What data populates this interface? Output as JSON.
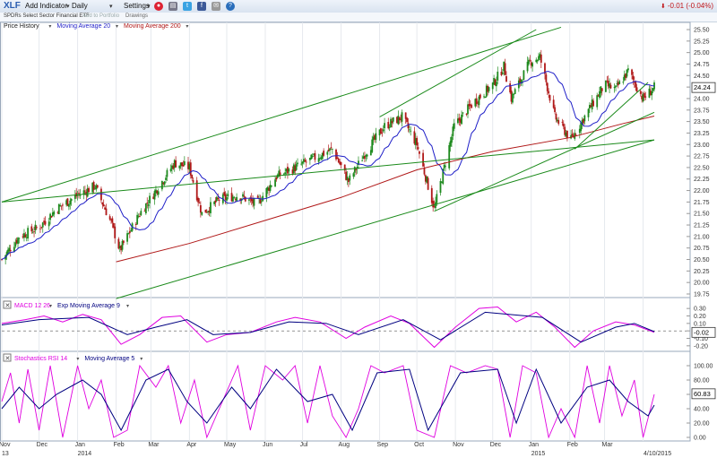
{
  "toolbar": {
    "symbol": "XLF",
    "add_indicator": "Add Indicator",
    "period": "Daily",
    "settings": "Settings",
    "price_change": "-0.01 (-0.04%)",
    "icons": [
      "flag-icon",
      "print-icon",
      "twitter-icon",
      "facebook-icon",
      "email-icon",
      "help-icon"
    ]
  },
  "subbar": {
    "name": "SPDRs Select Sector Financial ETF",
    "add_portfolio": "Add to Portfolio",
    "drawings": "Drawings"
  },
  "colors": {
    "up_candle": "#1e8a1e",
    "down_candle": "#b01818",
    "ma20": "#1f1fc8",
    "ma200": "#b01818",
    "trendline": "#1a8a1a",
    "macd": "#e000e0",
    "signal": "#000080"
  },
  "chart_data": [
    {
      "type": "candlestick",
      "legend": [
        "Price History",
        "Moving Average 20",
        "Moving Average 200"
      ],
      "y_range": [
        19.75,
        25.5
      ],
      "y_ticks": [
        "25.50",
        "25.25",
        "25.00",
        "24.75",
        "24.50",
        "24.25",
        "24.00",
        "23.75",
        "23.50",
        "23.25",
        "23.00",
        "22.75",
        "22.50",
        "22.25",
        "22.00",
        "21.75",
        "21.50",
        "21.25",
        "21.00",
        "20.75",
        "20.50",
        "20.25",
        "20.00",
        "19.75"
      ],
      "last_price": "24.24",
      "x_range": [
        "2013-11-01",
        "2015-04-10"
      ],
      "x_labels": [
        "Nov",
        "Dec",
        "Jan",
        "Feb",
        "Mar",
        "Apr",
        "May",
        "Jun",
        "Jul",
        "Aug",
        "Sep",
        "Oct",
        "Nov",
        "Dec",
        "Jan",
        "Feb",
        "Mar"
      ],
      "year_labels": [
        "13",
        "2014",
        "2015"
      ],
      "last_date_label": "4/10/2015",
      "price_path": [
        [
          "2013-11-01",
          20.5
        ],
        [
          "2013-11-15",
          21.0
        ],
        [
          "2013-12-01",
          21.2
        ],
        [
          "2013-12-15",
          21.6
        ],
        [
          "2014-01-01",
          21.9
        ],
        [
          "2014-01-15",
          22.1
        ],
        [
          "2014-01-28",
          21.3
        ],
        [
          "2014-02-04",
          20.7
        ],
        [
          "2014-02-20",
          21.5
        ],
        [
          "2014-03-05",
          22.0
        ],
        [
          "2014-03-20",
          22.6
        ],
        [
          "2014-04-01",
          22.5
        ],
        [
          "2014-04-11",
          21.5
        ],
        [
          "2014-04-25",
          21.8
        ],
        [
          "2014-05-10",
          21.9
        ],
        [
          "2014-05-25",
          21.7
        ],
        [
          "2014-06-10",
          22.3
        ],
        [
          "2014-06-25",
          22.5
        ],
        [
          "2014-07-10",
          22.7
        ],
        [
          "2014-07-25",
          22.9
        ],
        [
          "2014-08-07",
          22.2
        ],
        [
          "2014-08-20",
          22.8
        ],
        [
          "2014-09-05",
          23.4
        ],
        [
          "2014-09-19",
          23.6
        ],
        [
          "2014-10-01",
          23.0
        ],
        [
          "2014-10-15",
          21.6
        ],
        [
          "2014-10-31",
          23.4
        ],
        [
          "2014-11-15",
          23.9
        ],
        [
          "2014-12-01",
          24.3
        ],
        [
          "2014-12-10",
          24.7
        ],
        [
          "2014-12-16",
          24.0
        ],
        [
          "2014-12-31",
          24.8
        ],
        [
          "2015-01-08",
          24.9
        ],
        [
          "2015-01-20",
          23.6
        ],
        [
          "2015-02-02",
          23.1
        ],
        [
          "2015-02-15",
          23.7
        ],
        [
          "2015-03-01",
          24.3
        ],
        [
          "2015-03-10",
          24.2
        ],
        [
          "2015-03-20",
          24.6
        ],
        [
          "2015-04-01",
          24.0
        ],
        [
          "2015-04-10",
          24.24
        ]
      ],
      "ma200_path": [
        [
          "2014-02-01",
          20.45
        ],
        [
          "2014-04-01",
          20.85
        ],
        [
          "2014-06-01",
          21.35
        ],
        [
          "2014-08-01",
          21.85
        ],
        [
          "2014-10-01",
          22.45
        ],
        [
          "2014-12-01",
          22.85
        ],
        [
          "2015-02-01",
          23.15
        ],
        [
          "2015-03-15",
          23.45
        ],
        [
          "2015-04-10",
          23.62
        ]
      ],
      "trendlines": [
        {
          "from": [
            "2013-11-01",
            21.75
          ],
          "to": [
            "2015-04-10",
            23.1
          ]
        },
        {
          "from": [
            "2013-11-01",
            21.75
          ],
          "to": [
            "2015-01-25",
            25.55
          ]
        },
        {
          "from": [
            "2014-02-01",
            19.65
          ],
          "to": [
            "2015-04-10",
            23.1
          ]
        },
        {
          "from": [
            "2014-09-01",
            23.6
          ],
          "to": [
            "2015-01-05",
            25.5
          ]
        },
        {
          "from": [
            "2014-10-15",
            21.55
          ],
          "to": [
            "2015-04-10",
            23.7
          ]
        },
        {
          "from": [
            "2015-02-05",
            22.9
          ],
          "to": [
            "2015-04-05",
            24.35
          ]
        }
      ]
    },
    {
      "type": "line",
      "legend": [
        "MACD 12 26",
        "Exp Moving Average 9"
      ],
      "y_range": [
        -0.25,
        0.35
      ],
      "y_ticks": [
        "0.30",
        "0.20",
        "0.10",
        "0.00",
        "-0.10",
        "-0.20"
      ],
      "last_value": "-0.02",
      "macd_path": [
        [
          "2013-11-01",
          0.1
        ],
        [
          "2013-11-20",
          0.15
        ],
        [
          "2013-12-05",
          0.2
        ],
        [
          "2013-12-20",
          0.12
        ],
        [
          "2014-01-05",
          0.22
        ],
        [
          "2014-01-20",
          0.15
        ],
        [
          "2014-02-05",
          -0.18
        ],
        [
          "2014-02-20",
          -0.05
        ],
        [
          "2014-03-10",
          0.18
        ],
        [
          "2014-03-25",
          0.2
        ],
        [
          "2014-04-15",
          -0.15
        ],
        [
          "2014-05-01",
          -0.05
        ],
        [
          "2014-05-20",
          -0.02
        ],
        [
          "2014-06-10",
          0.12
        ],
        [
          "2014-06-25",
          0.18
        ],
        [
          "2014-07-15",
          0.12
        ],
        [
          "2014-08-05",
          -0.1
        ],
        [
          "2014-08-20",
          0.05
        ],
        [
          "2014-09-10",
          0.2
        ],
        [
          "2014-09-25",
          0.1
        ],
        [
          "2014-10-15",
          -0.22
        ],
        [
          "2014-11-01",
          0.05
        ],
        [
          "2014-11-20",
          0.3
        ],
        [
          "2014-12-05",
          0.32
        ],
        [
          "2014-12-20",
          0.12
        ],
        [
          "2015-01-05",
          0.25
        ],
        [
          "2015-01-20",
          0.05
        ],
        [
          "2015-02-05",
          -0.22
        ],
        [
          "2015-02-20",
          0.0
        ],
        [
          "2015-03-10",
          0.12
        ],
        [
          "2015-03-25",
          0.08
        ],
        [
          "2015-04-10",
          -0.02
        ]
      ],
      "signal_path": [
        [
          "2013-11-01",
          0.08
        ],
        [
          "2013-12-01",
          0.15
        ],
        [
          "2014-01-10",
          0.18
        ],
        [
          "2014-02-10",
          -0.05
        ],
        [
          "2014-03-05",
          0.05
        ],
        [
          "2014-03-30",
          0.15
        ],
        [
          "2014-04-20",
          -0.05
        ],
        [
          "2014-05-20",
          -0.02
        ],
        [
          "2014-06-20",
          0.12
        ],
        [
          "2014-07-20",
          0.1
        ],
        [
          "2014-08-15",
          -0.05
        ],
        [
          "2014-09-20",
          0.15
        ],
        [
          "2014-10-20",
          -0.12
        ],
        [
          "2014-11-25",
          0.25
        ],
        [
          "2014-12-15",
          0.22
        ],
        [
          "2015-01-10",
          0.18
        ],
        [
          "2015-02-10",
          -0.15
        ],
        [
          "2015-03-10",
          0.05
        ],
        [
          "2015-03-25",
          0.1
        ],
        [
          "2015-04-10",
          -0.01
        ]
      ]
    },
    {
      "type": "line",
      "legend": [
        "Stochastics RSI 14",
        "Moving Average 5"
      ],
      "y_range": [
        0,
        110
      ],
      "y_ticks": [
        "100.00",
        "80.00",
        "60.00",
        "40.00",
        "20.00",
        "0.00"
      ],
      "last_value": "60.83",
      "rsi_path": [
        [
          "2013-11-01",
          50
        ],
        [
          "2013-11-08",
          90
        ],
        [
          "2013-11-15",
          20
        ],
        [
          "2013-11-22",
          95
        ],
        [
          "2013-12-01",
          10
        ],
        [
          "2013-12-10",
          100
        ],
        [
          "2013-12-20",
          0
        ],
        [
          "2014-01-01",
          100
        ],
        [
          "2014-01-10",
          40
        ],
        [
          "2014-01-20",
          80
        ],
        [
          "2014-01-30",
          0
        ],
        [
          "2014-02-10",
          10
        ],
        [
          "2014-02-20",
          100
        ],
        [
          "2014-03-05",
          70
        ],
        [
          "2014-03-15",
          100
        ],
        [
          "2014-03-25",
          20
        ],
        [
          "2014-04-05",
          80
        ],
        [
          "2014-04-15",
          0
        ],
        [
          "2014-04-30",
          60
        ],
        [
          "2014-05-10",
          100
        ],
        [
          "2014-05-20",
          10
        ],
        [
          "2014-06-01",
          100
        ],
        [
          "2014-06-15",
          80
        ],
        [
          "2014-06-25",
          100
        ],
        [
          "2014-07-05",
          20
        ],
        [
          "2014-07-15",
          100
        ],
        [
          "2014-07-25",
          30
        ],
        [
          "2014-08-05",
          0
        ],
        [
          "2014-08-15",
          40
        ],
        [
          "2014-08-25",
          100
        ],
        [
          "2014-09-05",
          90
        ],
        [
          "2014-09-20",
          100
        ],
        [
          "2014-10-01",
          10
        ],
        [
          "2014-10-15",
          0
        ],
        [
          "2014-10-28",
          100
        ],
        [
          "2014-11-10",
          90
        ],
        [
          "2014-11-25",
          100
        ],
        [
          "2014-12-05",
          95
        ],
        [
          "2014-12-15",
          0
        ],
        [
          "2014-12-25",
          100
        ],
        [
          "2015-01-05",
          90
        ],
        [
          "2015-01-15",
          0
        ],
        [
          "2015-01-25",
          40
        ],
        [
          "2015-02-05",
          0
        ],
        [
          "2015-02-15",
          100
        ],
        [
          "2015-02-25",
          20
        ],
        [
          "2015-03-05",
          100
        ],
        [
          "2015-03-15",
          30
        ],
        [
          "2015-03-25",
          80
        ],
        [
          "2015-04-01",
          0
        ],
        [
          "2015-04-10",
          60
        ]
      ],
      "ma5_path": [
        [
          "2013-11-01",
          40
        ],
        [
          "2013-11-15",
          70
        ],
        [
          "2013-12-01",
          40
        ],
        [
          "2013-12-15",
          60
        ],
        [
          "2014-01-05",
          80
        ],
        [
          "2014-01-20",
          60
        ],
        [
          "2014-02-05",
          10
        ],
        [
          "2014-02-25",
          80
        ],
        [
          "2014-03-15",
          95
        ],
        [
          "2014-03-30",
          50
        ],
        [
          "2014-04-15",
          20
        ],
        [
          "2014-05-05",
          70
        ],
        [
          "2014-05-20",
          40
        ],
        [
          "2014-06-10",
          95
        ],
        [
          "2014-07-05",
          50
        ],
        [
          "2014-07-25",
          60
        ],
        [
          "2014-08-10",
          10
        ],
        [
          "2014-08-30",
          90
        ],
        [
          "2014-09-25",
          95
        ],
        [
          "2014-10-10",
          10
        ],
        [
          "2014-11-05",
          90
        ],
        [
          "2014-12-05",
          95
        ],
        [
          "2014-12-20",
          20
        ],
        [
          "2015-01-05",
          95
        ],
        [
          "2015-01-25",
          20
        ],
        [
          "2015-02-15",
          70
        ],
        [
          "2015-03-05",
          80
        ],
        [
          "2015-03-20",
          50
        ],
        [
          "2015-04-05",
          30
        ],
        [
          "2015-04-10",
          45
        ]
      ]
    }
  ]
}
